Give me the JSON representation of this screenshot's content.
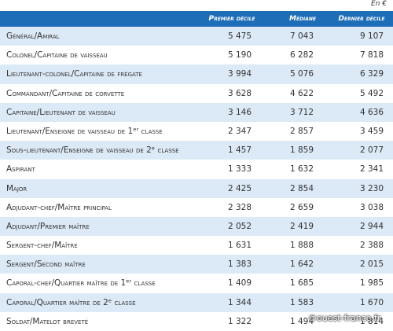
{
  "unit_note": "En €",
  "table": {
    "header": [
      "Premier décile",
      "Médiane",
      "Dernier décile"
    ],
    "rows": [
      [
        "Général/Amiral",
        "5 475",
        "7 043",
        "9 107"
      ],
      [
        "Colonel/Capitaine de vaisseau",
        "5 190",
        "6 282",
        "7 818"
      ],
      [
        "Lieutenant-colonel/Capitaine de frégate",
        "3 994",
        "5 076",
        "6 329"
      ],
      [
        "Commandant/Capitaine de corvette",
        "3 628",
        "4 622",
        "5 492"
      ],
      [
        "Capitaine/Lieutenant de vaisseau",
        "3 146",
        "3 712",
        "4 636"
      ],
      [
        "Lieutenant/Enseigne de vaisseau de 1ᵉʳ classe",
        "2 347",
        "2 857",
        "3 459"
      ],
      [
        "Sous-lieutenant/Enseigne de vaisseau de 2ᵉ classe",
        "1 457",
        "1 859",
        "2 077"
      ],
      [
        "Aspirant",
        "1 333",
        "1 632",
        "2 341"
      ],
      [
        "Major",
        "2 425",
        "2 854",
        "3 230"
      ],
      [
        "Adjudant-chef/Maître principal",
        "2 328",
        "2 659",
        "3 038"
      ],
      [
        "Adjudant/Premier maître",
        "2 052",
        "2 419",
        "2 944"
      ],
      [
        "Sergent-chef/Maître",
        "1 631",
        "1 888",
        "2 388"
      ],
      [
        "Sergent/Second maître",
        "1 383",
        "1 642",
        "2 015"
      ],
      [
        "Caporal-chef/Quartier maître de 1ᵉʳ classe",
        "1 409",
        "1 685",
        "1 985"
      ],
      [
        "Caporal/Quartier maître de 2ᵉ classe",
        "1 344",
        "1 583",
        "1 670"
      ],
      [
        "Soldat/Matelot breveté",
        "1 322",
        "1 494",
        "1 814"
      ]
    ]
  },
  "watermark": "©ouest-france.fr"
}
